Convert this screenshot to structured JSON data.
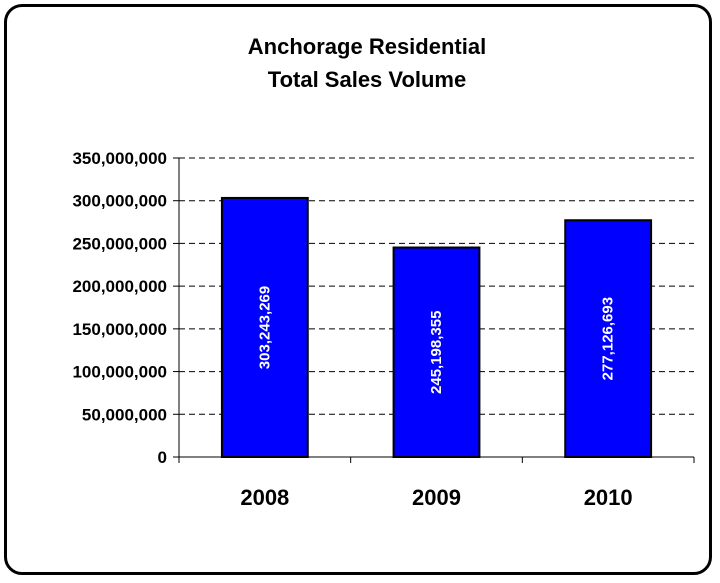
{
  "chart_data": {
    "type": "bar",
    "title": "Anchorage Residential",
    "subtitle": "Total Sales Volume",
    "categories": [
      "2008",
      "2009",
      "2010"
    ],
    "values": [
      303243269,
      245198355,
      277126693
    ],
    "data_labels": [
      "303,243,269",
      "245,198,355",
      "277,126,693"
    ],
    "xlabel": "",
    "ylabel": "",
    "ylim": [
      0,
      350000000
    ],
    "yticks": [
      0,
      50000000,
      100000000,
      150000000,
      200000000,
      250000000,
      300000000,
      350000000
    ],
    "ytick_labels": [
      "0",
      "50,000,000",
      "100,000,000",
      "150,000,000",
      "200,000,000",
      "250,000,000",
      "300,000,000",
      "350,000,000"
    ],
    "grid": "horizontal-dashed",
    "legend": "none",
    "bar_color": "#0000FF",
    "bar_outline_color": "#000000",
    "data_label_color": "#FFFFFF"
  }
}
